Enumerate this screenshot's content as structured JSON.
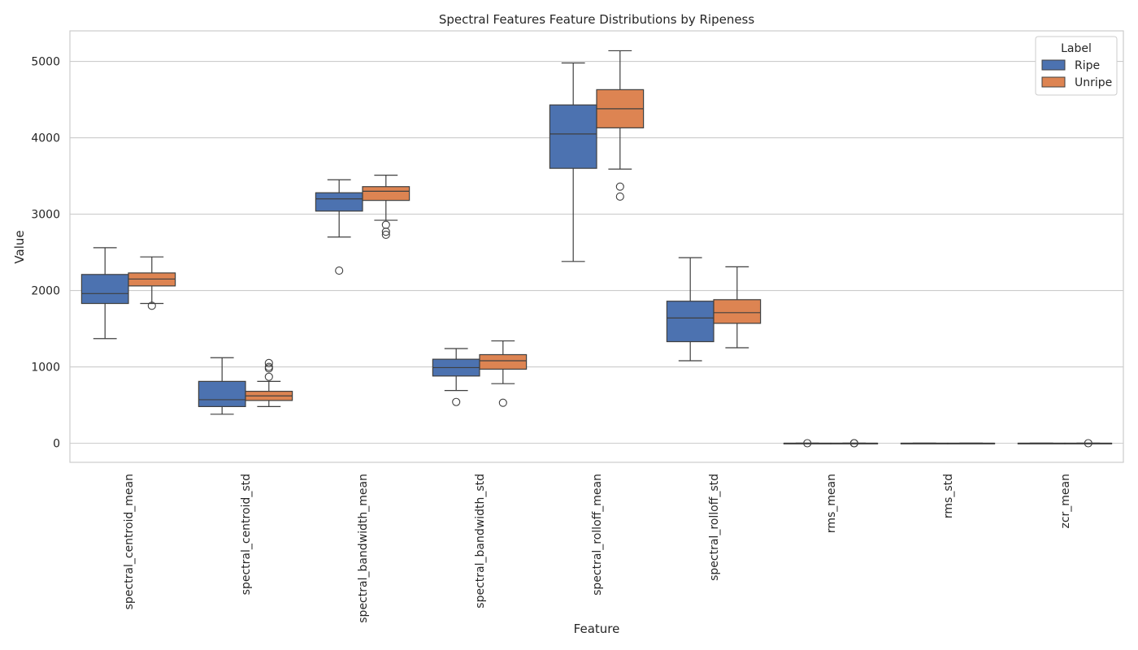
{
  "chart_data": {
    "type": "box",
    "title": "Spectral Features Feature Distributions by Ripeness",
    "xlabel": "Feature",
    "ylabel": "Value",
    "ylim": [
      -250,
      5400
    ],
    "yticks": [
      0,
      1000,
      2000,
      3000,
      4000,
      5000
    ],
    "grid": "horizontal",
    "legend": {
      "title": "Label",
      "position": "top-right",
      "entries": [
        "Ripe",
        "Unripe"
      ]
    },
    "categories": [
      "spectral_centroid_mean",
      "spectral_centroid_std",
      "spectral_bandwidth_mean",
      "spectral_bandwidth_std",
      "spectral_rolloff_mean",
      "spectral_rolloff_std",
      "rms_mean",
      "rms_std",
      "zcr_mean"
    ],
    "series": [
      {
        "name": "Ripe",
        "color": "#4c72b0",
        "boxes": [
          {
            "whislo": 1370,
            "q1": 1830,
            "med": 1960,
            "q3": 2210,
            "whishi": 2560,
            "fliers": []
          },
          {
            "whislo": 380,
            "q1": 480,
            "med": 570,
            "q3": 810,
            "whishi": 1120,
            "fliers": []
          },
          {
            "whislo": 2700,
            "q1": 3040,
            "med": 3200,
            "q3": 3280,
            "whishi": 3450,
            "fliers": [
              2260
            ]
          },
          {
            "whislo": 690,
            "q1": 880,
            "med": 990,
            "q3": 1100,
            "whishi": 1240,
            "fliers": [
              540
            ]
          },
          {
            "whislo": 2380,
            "q1": 3600,
            "med": 4050,
            "q3": 4430,
            "whishi": 4980,
            "fliers": []
          },
          {
            "whislo": 1080,
            "q1": 1330,
            "med": 1640,
            "q3": 1860,
            "whishi": 2430,
            "fliers": []
          },
          {
            "whislo": 0,
            "q1": 0,
            "med": 0,
            "q3": 0,
            "whishi": 0,
            "fliers": [
              0
            ]
          },
          {
            "whislo": 0,
            "q1": 0,
            "med": 0,
            "q3": 0,
            "whishi": 0,
            "fliers": []
          },
          {
            "whislo": 0,
            "q1": 0,
            "med": 0,
            "q3": 0,
            "whishi": 0,
            "fliers": []
          }
        ]
      },
      {
        "name": "Unripe",
        "color": "#dd8452",
        "boxes": [
          {
            "whislo": 1830,
            "q1": 2060,
            "med": 2150,
            "q3": 2230,
            "whishi": 2440,
            "fliers": [
              1800
            ]
          },
          {
            "whislo": 480,
            "q1": 560,
            "med": 620,
            "q3": 680,
            "whishi": 810,
            "fliers": [
              870,
              980,
              1000,
              1050
            ]
          },
          {
            "whislo": 2920,
            "q1": 3180,
            "med": 3300,
            "q3": 3360,
            "whishi": 3510,
            "fliers": [
              2860,
              2770,
              2730
            ]
          },
          {
            "whislo": 780,
            "q1": 970,
            "med": 1080,
            "q3": 1160,
            "whishi": 1340,
            "fliers": [
              530
            ]
          },
          {
            "whislo": 3590,
            "q1": 4130,
            "med": 4380,
            "q3": 4630,
            "whishi": 5140,
            "fliers": [
              3360,
              3230
            ]
          },
          {
            "whislo": 1250,
            "q1": 1570,
            "med": 1710,
            "q3": 1880,
            "whishi": 2310,
            "fliers": []
          },
          {
            "whislo": 0,
            "q1": 0,
            "med": 0,
            "q3": 0,
            "whishi": 0,
            "fliers": [
              0,
              0
            ]
          },
          {
            "whislo": 0,
            "q1": 0,
            "med": 0,
            "q3": 0,
            "whishi": 0,
            "fliers": []
          },
          {
            "whislo": 0,
            "q1": 0,
            "med": 0,
            "q3": 0,
            "whishi": 0,
            "fliers": [
              0
            ]
          }
        ]
      }
    ]
  }
}
